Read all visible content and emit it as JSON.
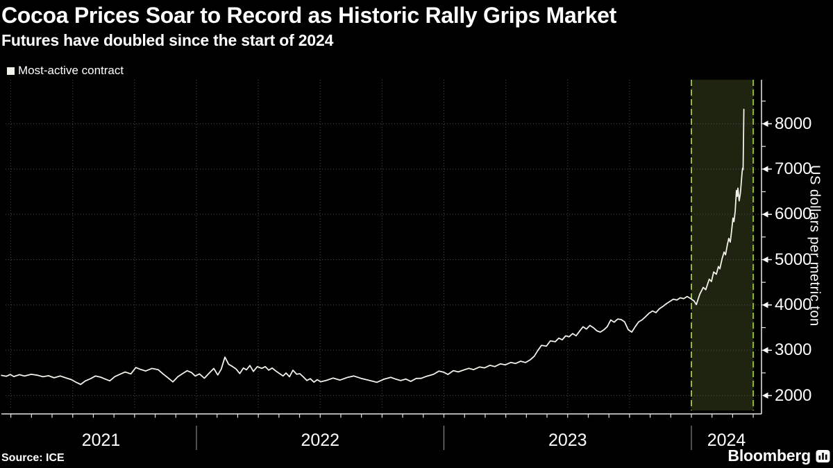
{
  "header": {
    "title": "Cocoa Prices Soar to Record as Historic Rally Grips Market",
    "subtitle": "Futures have doubled since the start of 2024"
  },
  "legend": {
    "label": "Most-active contract"
  },
  "footer": {
    "source": "Source: ICE",
    "brand": "Bloomberg"
  },
  "colors": {
    "background": "#000000",
    "text": "#ffffff",
    "line": "#f3f2ea",
    "grid": "#4f4f4f",
    "axis": "#e8e8e8",
    "year_divider": "#9b9b9b",
    "highlight_fill": "#1e2410",
    "highlight_border": "#8fbc3a"
  },
  "chart_data": {
    "type": "line",
    "title": "Cocoa Prices Soar to Record as Historic Rally Grips Market",
    "subtitle": "Futures have doubled since the start of 2024",
    "ylabel": "US dollars per metric ton",
    "source": "ICE",
    "legend_entries": [
      "Most-active contract"
    ],
    "legend_position": "top-left",
    "grid": "dotted; horizontal every 1000, vertical quarterly",
    "x_year_labels": [
      "2021",
      "2022",
      "2023",
      "2024"
    ],
    "year_starts": [
      2022,
      2023,
      2024
    ],
    "x_range": [
      2021.21,
      2024.29
    ],
    "y_ticks": [
      2000,
      3000,
      4000,
      5000,
      6000,
      7000,
      8000
    ],
    "y_minor_tick_step": 500,
    "ylim": [
      1680,
      8970
    ],
    "highlight_region": {
      "from": 2024.0,
      "to": 2024.25
    },
    "series": [
      {
        "name": "Most-active contract",
        "color": "#f3f2ea",
        "unit": "US dollars per metric ton",
        "points": [
          [
            2021.212,
            2445
          ],
          [
            2021.232,
            2425
          ],
          [
            2021.248,
            2465
          ],
          [
            2021.262,
            2420
          ],
          [
            2021.285,
            2460
          ],
          [
            2021.305,
            2430
          ],
          [
            2021.332,
            2468
          ],
          [
            2021.358,
            2448
          ],
          [
            2021.38,
            2415
          ],
          [
            2021.402,
            2438
          ],
          [
            2021.425,
            2392
          ],
          [
            2021.45,
            2432
          ],
          [
            2021.472,
            2390
          ],
          [
            2021.495,
            2350
          ],
          [
            2021.515,
            2290
          ],
          [
            2021.532,
            2245
          ],
          [
            2021.55,
            2320
          ],
          [
            2021.572,
            2372
          ],
          [
            2021.592,
            2432
          ],
          [
            2021.613,
            2405
          ],
          [
            2021.632,
            2362
          ],
          [
            2021.65,
            2325
          ],
          [
            2021.67,
            2418
          ],
          [
            2021.69,
            2468
          ],
          [
            2021.712,
            2520
          ],
          [
            2021.735,
            2478
          ],
          [
            2021.755,
            2618
          ],
          [
            2021.775,
            2575
          ],
          [
            2021.795,
            2542
          ],
          [
            2021.82,
            2598
          ],
          [
            2021.845,
            2572
          ],
          [
            2021.865,
            2478
          ],
          [
            2021.885,
            2392
          ],
          [
            2021.905,
            2302
          ],
          [
            2021.925,
            2418
          ],
          [
            2021.945,
            2488
          ],
          [
            2021.962,
            2548
          ],
          [
            2021.98,
            2508
          ],
          [
            2021.995,
            2432
          ],
          [
            2022.012,
            2478
          ],
          [
            2022.032,
            2382
          ],
          [
            2022.052,
            2498
          ],
          [
            2022.07,
            2598
          ],
          [
            2022.086,
            2455
          ],
          [
            2022.1,
            2578
          ],
          [
            2022.115,
            2848
          ],
          [
            2022.13,
            2692
          ],
          [
            2022.146,
            2640
          ],
          [
            2022.16,
            2588
          ],
          [
            2022.175,
            2485
          ],
          [
            2022.19,
            2608
          ],
          [
            2022.202,
            2568
          ],
          [
            2022.216,
            2662
          ],
          [
            2022.23,
            2532
          ],
          [
            2022.246,
            2638
          ],
          [
            2022.264,
            2600
          ],
          [
            2022.278,
            2638
          ],
          [
            2022.292,
            2560
          ],
          [
            2022.306,
            2608
          ],
          [
            2022.32,
            2545
          ],
          [
            2022.335,
            2488
          ],
          [
            2022.35,
            2432
          ],
          [
            2022.362,
            2498
          ],
          [
            2022.376,
            2415
          ],
          [
            2022.39,
            2558
          ],
          [
            2022.405,
            2470
          ],
          [
            2022.418,
            2482
          ],
          [
            2022.432,
            2412
          ],
          [
            2022.446,
            2332
          ],
          [
            2022.46,
            2372
          ],
          [
            2022.475,
            2295
          ],
          [
            2022.488,
            2350
          ],
          [
            2022.502,
            2305
          ],
          [
            2022.525,
            2335
          ],
          [
            2022.552,
            2385
          ],
          [
            2022.58,
            2342
          ],
          [
            2022.61,
            2400
          ],
          [
            2022.636,
            2432
          ],
          [
            2022.665,
            2380
          ],
          [
            2022.694,
            2340
          ],
          [
            2022.729,
            2292
          ],
          [
            2022.757,
            2360
          ],
          [
            2022.785,
            2402
          ],
          [
            2022.805,
            2362
          ],
          [
            2022.825,
            2330
          ],
          [
            2022.846,
            2365
          ],
          [
            2022.866,
            2312
          ],
          [
            2022.888,
            2378
          ],
          [
            2022.908,
            2380
          ],
          [
            2022.93,
            2425
          ],
          [
            2022.958,
            2468
          ],
          [
            2022.98,
            2540
          ],
          [
            2023.0,
            2512
          ],
          [
            2023.016,
            2465
          ],
          [
            2023.038,
            2550
          ],
          [
            2023.058,
            2522
          ],
          [
            2023.078,
            2560
          ],
          [
            2023.1,
            2600
          ],
          [
            2023.12,
            2572
          ],
          [
            2023.144,
            2630
          ],
          [
            2023.164,
            2610
          ],
          [
            2023.186,
            2668
          ],
          [
            2023.206,
            2640
          ],
          [
            2023.228,
            2700
          ],
          [
            2023.248,
            2678
          ],
          [
            2023.27,
            2730
          ],
          [
            2023.29,
            2708
          ],
          [
            2023.31,
            2758
          ],
          [
            2023.33,
            2728
          ],
          [
            2023.349,
            2790
          ],
          [
            2023.365,
            2868
          ],
          [
            2023.38,
            3000
          ],
          [
            2023.394,
            3108
          ],
          [
            2023.414,
            3090
          ],
          [
            2023.43,
            3208
          ],
          [
            2023.45,
            3188
          ],
          [
            2023.464,
            3268
          ],
          [
            2023.478,
            3230
          ],
          [
            2023.492,
            3318
          ],
          [
            2023.506,
            3298
          ],
          [
            2023.52,
            3368
          ],
          [
            2023.534,
            3320
          ],
          [
            2023.548,
            3420
          ],
          [
            2023.562,
            3518
          ],
          [
            2023.576,
            3468
          ],
          [
            2023.59,
            3548
          ],
          [
            2023.604,
            3498
          ],
          [
            2023.618,
            3430
          ],
          [
            2023.632,
            3400
          ],
          [
            2023.646,
            3450
          ],
          [
            2023.66,
            3520
          ],
          [
            2023.674,
            3668
          ],
          [
            2023.688,
            3620
          ],
          [
            2023.702,
            3690
          ],
          [
            2023.716,
            3678
          ],
          [
            2023.73,
            3628
          ],
          [
            2023.745,
            3452
          ],
          [
            2023.759,
            3400
          ],
          [
            2023.773,
            3520
          ],
          [
            2023.787,
            3628
          ],
          [
            2023.8,
            3668
          ],
          [
            2023.815,
            3740
          ],
          [
            2023.829,
            3818
          ],
          [
            2023.843,
            3868
          ],
          [
            2023.857,
            3830
          ],
          [
            2023.871,
            3918
          ],
          [
            2023.885,
            3968
          ],
          [
            2023.899,
            4028
          ],
          [
            2023.913,
            4078
          ],
          [
            2023.927,
            4128
          ],
          [
            2023.941,
            4108
          ],
          [
            2023.955,
            4158
          ],
          [
            2023.969,
            4138
          ],
          [
            2023.983,
            4188
          ],
          [
            2023.997,
            4142
          ],
          [
            2024.011,
            4088
          ],
          [
            2024.02,
            4008
          ],
          [
            2024.034,
            4238
          ],
          [
            2024.048,
            4388
          ],
          [
            2024.058,
            4338
          ],
          [
            2024.072,
            4568
          ],
          [
            2024.081,
            4518
          ],
          [
            2024.09,
            4728
          ],
          [
            2024.101,
            4678
          ],
          [
            2024.109,
            4848
          ],
          [
            2024.115,
            4798
          ],
          [
            2024.124,
            5018
          ],
          [
            2024.132,
            5168
          ],
          [
            2024.138,
            5108
          ],
          [
            2024.145,
            5318
          ],
          [
            2024.151,
            5468
          ],
          [
            2024.157,
            5388
          ],
          [
            2024.162,
            5618
          ],
          [
            2024.168,
            5918
          ],
          [
            2024.172,
            5838
          ],
          [
            2024.177,
            6068
          ],
          [
            2024.182,
            6528
          ],
          [
            2024.185,
            6398
          ],
          [
            2024.188,
            6578
          ],
          [
            2024.193,
            6298
          ],
          [
            2024.198,
            6468
          ],
          [
            2024.202,
            6728
          ],
          [
            2024.205,
            6938
          ],
          [
            2024.207,
            7018
          ],
          [
            2024.209,
            6988
          ],
          [
            2024.212,
            8320
          ]
        ]
      }
    ]
  }
}
